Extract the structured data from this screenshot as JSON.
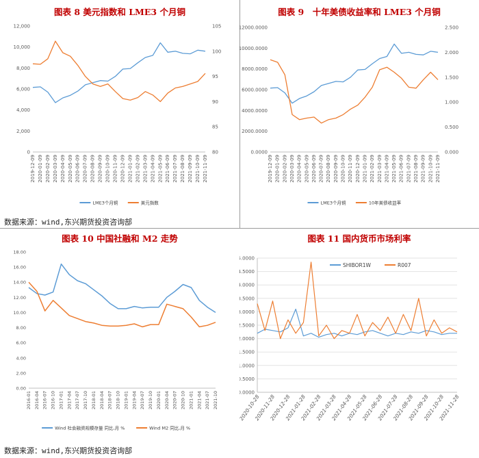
{
  "source_text": "数据来源：wind,东兴期货投资咨询部",
  "chart_data": [
    {
      "type": "line",
      "title": "图表 8 美元指数和 LME3 个月铜",
      "x_ticks": [
        "2019-12-09",
        "2020-01-09",
        "2020-02-09",
        "2020-03-09",
        "2020-04-09",
        "2020-05-09",
        "2020-06-09",
        "2020-07-09",
        "2020-08-09",
        "2020-09-09",
        "2020-10-09",
        "2020-11-09",
        "2020-12-09",
        "2021-01-09",
        "2021-02-09",
        "2021-03-09",
        "2021-04-09",
        "2021-05-09",
        "2021-06-09",
        "2021-07-09",
        "2021-08-09",
        "2021-09-09",
        "2021-10-09",
        "2021-11-09"
      ],
      "y_left_ticks": [
        "0",
        "2,000",
        "4,000",
        "6,000",
        "8,000",
        "10,000",
        "12,000"
      ],
      "y_right_ticks": [
        "80",
        "85",
        "90",
        "95",
        "100",
        "105"
      ],
      "ylim_left": [
        0,
        12000
      ],
      "ylim_right": [
        80,
        105
      ],
      "series": [
        {
          "name": "LME3个月铜",
          "axis": "left",
          "color": "#5B9BD5",
          "values": [
            6150,
            6200,
            5700,
            4700,
            5150,
            5400,
            5800,
            6400,
            6600,
            6800,
            6750,
            7200,
            7900,
            7950,
            8500,
            9000,
            9200,
            10400,
            9500,
            9600,
            9400,
            9350,
            9700,
            9600
          ]
        },
        {
          "name": "美元指数",
          "axis": "right",
          "color": "#ED7D31",
          "values": [
            97.5,
            97.4,
            98.5,
            102.0,
            99.7,
            99.0,
            97.2,
            95.0,
            93.5,
            93.0,
            93.5,
            92.0,
            90.6,
            90.3,
            90.8,
            92.0,
            91.3,
            90.0,
            91.7,
            92.7,
            93.0,
            93.5,
            94.0,
            95.6
          ]
        }
      ]
    },
    {
      "type": "line",
      "title": "图表 9　十年美债收益率和 LME3 个月铜",
      "x_ticks": [
        "2019-12-09",
        "2020-01-09",
        "2020-02-09",
        "2020-03-09",
        "2020-04-09",
        "2020-05-09",
        "2020-06-09",
        "2020-07-09",
        "2020-08-09",
        "2020-09-09",
        "2020-10-09",
        "2020-11-09",
        "2020-12-09",
        "2021-01-09",
        "2021-02-09",
        "2021-03-09",
        "2021-04-09",
        "2021-05-09",
        "2021-06-09",
        "2021-07-09",
        "2021-08-09",
        "2021-09-09",
        "2021-10-09",
        "2021-11-09"
      ],
      "y_left_ticks": [
        "0.0000",
        "2000.0000",
        "4000.0000",
        "6000.0000",
        "8000.0000",
        "10000.0000",
        "12000.0000"
      ],
      "y_right_ticks": [
        "0.000",
        "0.500",
        "1.000",
        "1.500",
        "2.000",
        "2.500"
      ],
      "ylim_left": [
        0,
        12000
      ],
      "ylim_right": [
        0,
        2.5
      ],
      "series": [
        {
          "name": "LME3个月铜",
          "axis": "left",
          "color": "#5B9BD5",
          "values": [
            6150,
            6200,
            5700,
            4700,
            5150,
            5400,
            5800,
            6400,
            6600,
            6800,
            6750,
            7200,
            7900,
            7950,
            8500,
            9000,
            9200,
            10400,
            9500,
            9600,
            9400,
            9350,
            9700,
            9600
          ]
        },
        {
          "name": "10年美债收益率",
          "axis": "right",
          "color": "#ED7D31",
          "values": [
            1.85,
            1.8,
            1.55,
            0.75,
            0.65,
            0.68,
            0.7,
            0.58,
            0.65,
            0.68,
            0.75,
            0.86,
            0.94,
            1.1,
            1.3,
            1.65,
            1.7,
            1.6,
            1.48,
            1.3,
            1.28,
            1.45,
            1.6,
            1.45
          ]
        }
      ]
    },
    {
      "type": "line",
      "title": "图表 10 中国社融和 M2 走势",
      "x_ticks": [
        "2016-01",
        "2016-04",
        "2016-07",
        "2016-10",
        "2017-01",
        "2017-04",
        "2017-07",
        "2017-10",
        "2018-01",
        "2018-04",
        "2018-07",
        "2018-10",
        "2019-01",
        "2019-04",
        "2019-07",
        "2019-10",
        "2020-01",
        "2020-04",
        "2020-07",
        "2020-10",
        "2021-01",
        "2021-04",
        "2021-07",
        "2021-10"
      ],
      "y_left_ticks": [
        "0.00",
        "2.00",
        "4.00",
        "6.00",
        "8.00",
        "10.00",
        "12.00",
        "14.00",
        "16.00",
        "18.00"
      ],
      "ylim_left": [
        0,
        18
      ],
      "series": [
        {
          "name": "Wind 社会融资规模存量 同比,月 %",
          "color": "#5B9BD5",
          "values": [
            13.3,
            12.5,
            12.3,
            12.7,
            16.4,
            15.0,
            14.2,
            13.8,
            13.0,
            12.2,
            11.2,
            10.5,
            10.5,
            10.8,
            10.6,
            10.7,
            10.7,
            12.0,
            12.8,
            13.7,
            13.3,
            11.6,
            10.7,
            10.0
          ]
        },
        {
          "name": "Wind M2 同比,月 %",
          "color": "#ED7D31",
          "values": [
            14.0,
            12.8,
            10.2,
            11.6,
            10.6,
            9.6,
            9.2,
            8.8,
            8.6,
            8.3,
            8.2,
            8.2,
            8.3,
            8.5,
            8.1,
            8.4,
            8.4,
            11.1,
            10.8,
            10.5,
            9.4,
            8.1,
            8.3,
            8.7
          ]
        }
      ]
    },
    {
      "type": "line",
      "title": "图表 11 国内货币市场利率",
      "x_ticks": [
        "2020-10-28",
        "2020-11-28",
        "2020-12-28",
        "2021-01-28",
        "2021-02-28",
        "2021-03-28",
        "2021-04-28",
        "2021-05-28",
        "2021-06-28",
        "2021-07-28",
        "2021-08-28",
        "2021-09-28",
        "2021-10-28",
        "2021-11-28"
      ],
      "y_left_ticks": [
        "0.0000",
        "0.5000",
        "1.0000",
        "1.5000",
        "2.0000",
        "2.5000",
        "3.0000",
        "3.5000",
        "4.0000",
        "4.5000",
        "5.0000"
      ],
      "ylim_left": [
        0,
        5
      ],
      "series": [
        {
          "name": "SHIBOR1W",
          "color": "#5B9BD5",
          "values": [
            2.2,
            2.35,
            2.3,
            2.25,
            2.4,
            3.1,
            2.1,
            2.2,
            2.05,
            2.15,
            2.2,
            2.1,
            2.2,
            2.15,
            2.25,
            2.3,
            2.2,
            2.1,
            2.2,
            2.15,
            2.25,
            2.2,
            2.3,
            2.25,
            2.15,
            2.2,
            2.2
          ]
        },
        {
          "name": "R007",
          "color": "#ED7D31",
          "values": [
            3.3,
            2.3,
            3.4,
            2.0,
            2.7,
            2.2,
            2.6,
            4.85,
            2.1,
            2.5,
            2.0,
            2.3,
            2.2,
            2.9,
            2.1,
            2.6,
            2.3,
            2.8,
            2.2,
            2.9,
            2.3,
            3.5,
            2.1,
            2.7,
            2.2,
            2.4,
            2.25
          ]
        }
      ]
    }
  ]
}
